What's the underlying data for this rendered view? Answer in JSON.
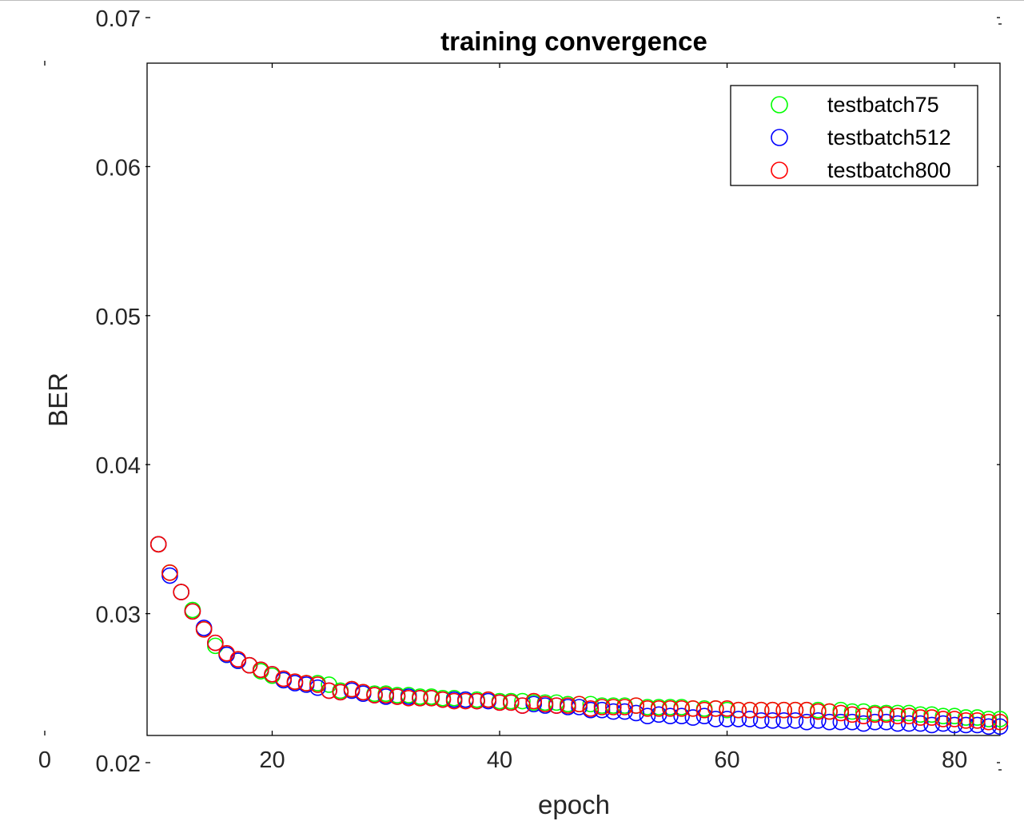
{
  "chart_data": {
    "type": "scatter",
    "title": "training convergence",
    "xlabel": "epoch",
    "ylabel": "BER",
    "xlim": [
      9,
      84
    ],
    "ylim": [
      0.0225,
      0.0675
    ],
    "x_ticks": [
      20,
      40,
      60,
      80
    ],
    "x_tick_labels": [
      "20",
      "40",
      "60",
      "80"
    ],
    "x_origin_label": "0",
    "y_ticks": [
      0.02,
      0.03,
      0.04,
      0.05,
      0.06,
      0.07
    ],
    "y_tick_labels": [
      "0.02",
      "0.03",
      "0.04",
      "0.05",
      "0.06",
      "0.07"
    ],
    "legend_position": "top-right",
    "grid": false,
    "marker": "open-circle",
    "x": [
      10,
      11,
      12,
      13,
      14,
      15,
      16,
      17,
      18,
      19,
      20,
      21,
      22,
      23,
      24,
      25,
      26,
      27,
      28,
      29,
      30,
      31,
      32,
      33,
      34,
      35,
      36,
      37,
      38,
      39,
      40,
      41,
      42,
      43,
      44,
      45,
      46,
      47,
      48,
      49,
      50,
      51,
      52,
      53,
      54,
      55,
      56,
      57,
      58,
      59,
      60,
      61,
      62,
      63,
      64,
      65,
      66,
      67,
      68,
      69,
      70,
      71,
      72,
      73,
      74,
      75,
      76,
      77,
      78,
      79,
      80,
      81,
      82,
      83,
      84
    ],
    "series": [
      {
        "name": "testbatch75",
        "color": "#00ff00",
        "values": [
          0.0353,
          0.0334,
          0.0321,
          0.0309,
          0.0296,
          0.0285,
          0.0279,
          0.0275,
          0.0272,
          0.0268,
          0.0265,
          0.0262,
          0.0261,
          0.026,
          0.026,
          0.0259,
          0.0255,
          0.0256,
          0.0254,
          0.0253,
          0.0253,
          0.0252,
          0.0252,
          0.0251,
          0.0251,
          0.025,
          0.025,
          0.0249,
          0.0249,
          0.0249,
          0.0248,
          0.0248,
          0.0248,
          0.0247,
          0.0247,
          0.0247,
          0.0246,
          0.0246,
          0.0246,
          0.0245,
          0.0245,
          0.0245,
          0.0245,
          0.0244,
          0.0244,
          0.0244,
          0.0244,
          0.0243,
          0.0243,
          0.0243,
          0.0242,
          0.0242,
          0.0242,
          0.0242,
          0.0242,
          0.0242,
          0.0242,
          0.0242,
          0.0242,
          0.0241,
          0.0242,
          0.0241,
          0.0241,
          0.024,
          0.024,
          0.024,
          0.024,
          0.0239,
          0.0239,
          0.0238,
          0.0238,
          0.0237,
          0.0237,
          0.0236,
          0.0236
        ]
      },
      {
        "name": "testbatch512",
        "color": "#0000ff",
        "values": [
          0.0353,
          0.0332,
          0.0321,
          0.0308,
          0.0297,
          0.0287,
          0.0279,
          0.0275,
          0.0272,
          0.0269,
          0.0266,
          0.0262,
          0.026,
          0.0259,
          0.0257,
          0.0255,
          0.0254,
          0.0255,
          0.0253,
          0.0252,
          0.0251,
          0.0251,
          0.0251,
          0.025,
          0.025,
          0.0249,
          0.0249,
          0.0249,
          0.0248,
          0.0248,
          0.0247,
          0.0247,
          0.0245,
          0.0246,
          0.0245,
          0.0245,
          0.0244,
          0.0244,
          0.0242,
          0.0242,
          0.0241,
          0.0241,
          0.024,
          0.0238,
          0.0239,
          0.0238,
          0.0238,
          0.0237,
          0.0238,
          0.0236,
          0.0236,
          0.0236,
          0.0236,
          0.0235,
          0.0235,
          0.0235,
          0.0235,
          0.0234,
          0.0235,
          0.0234,
          0.0234,
          0.0234,
          0.0233,
          0.0234,
          0.0234,
          0.0233,
          0.0233,
          0.0233,
          0.0232,
          0.0233,
          0.0232,
          0.0232,
          0.0232,
          0.0231,
          0.0231
        ]
      },
      {
        "name": "testbatch800",
        "color": "#ff0000",
        "values": [
          0.0353,
          0.0334,
          0.0321,
          0.0308,
          0.0296,
          0.0287,
          0.028,
          0.0276,
          0.0272,
          0.0269,
          0.0266,
          0.0263,
          0.0261,
          0.026,
          0.0259,
          0.0255,
          0.0254,
          0.0256,
          0.0254,
          0.0252,
          0.0252,
          0.0251,
          0.025,
          0.025,
          0.025,
          0.0249,
          0.0248,
          0.0248,
          0.0248,
          0.0249,
          0.0247,
          0.0247,
          0.0245,
          0.0248,
          0.0246,
          0.0245,
          0.0245,
          0.0246,
          0.0243,
          0.0244,
          0.0244,
          0.0244,
          0.0245,
          0.0243,
          0.0243,
          0.0243,
          0.0243,
          0.0243,
          0.0242,
          0.0243,
          0.0243,
          0.0242,
          0.0242,
          0.0242,
          0.0242,
          0.0242,
          0.0242,
          0.0242,
          0.0241,
          0.0241,
          0.024,
          0.0239,
          0.0238,
          0.0239,
          0.0239,
          0.0238,
          0.0238,
          0.0237,
          0.0237,
          0.0236,
          0.0236,
          0.0235,
          0.0235,
          0.0234,
          0.0234
        ]
      }
    ]
  }
}
